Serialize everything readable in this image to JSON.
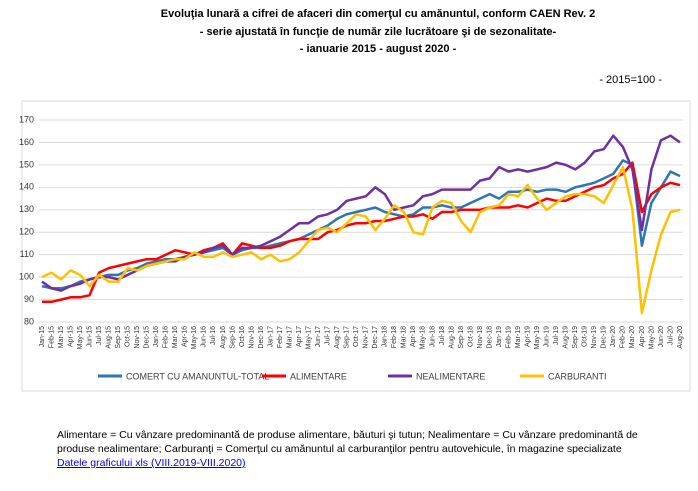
{
  "chart_data": {
    "type": "line",
    "title_lines": [
      "Evoluţia lunară a cifrei de afaceri din comerţul cu amănuntul,  conform CAEN Rev. 2",
      "- serie ajustată în funcţie de număr zile lucrătoare şi de sezonalitate-",
      "- ianuarie 2015 -  august 2020  -"
    ],
    "unit_note": "- 2015=100 -",
    "categories": [
      "Jan-15",
      "Feb-15",
      "Mar-15",
      "Apr-15",
      "May-15",
      "Jun-15",
      "Jul-15",
      "Aug-15",
      "Sep-15",
      "Oct-15",
      "Nov-15",
      "Dec-15",
      "Jan-16",
      "Feb-16",
      "Mar-16",
      "Apr-16",
      "May-16",
      "Jun-16",
      "Jul-16",
      "Aug-16",
      "Sep-16",
      "Oct-16",
      "Nov-16",
      "Dec-16",
      "Jan-17",
      "Feb-17",
      "Mar-17",
      "Apr-17",
      "May-17",
      "Jun-17",
      "Jul-17",
      "Aug-17",
      "Sep-17",
      "Oct-17",
      "Nov-17",
      "Dec-17",
      "Jan-18",
      "Feb-18",
      "Mar-18",
      "Apr-18",
      "May-18",
      "Jun-18",
      "Jul-18",
      "Aug-18",
      "Sep-18",
      "Oct-18",
      "Nov-18",
      "Dec-18",
      "Jan-19",
      "Feb-19",
      "Mar-19",
      "Apr-19",
      "May-19",
      "Jun-19",
      "Jul-19",
      "Aug-19",
      "Sep-19",
      "Oct-19",
      "Nov-19",
      "Dec-19",
      "Jan-20",
      "Feb-20",
      "Mar-20",
      "Apr-20",
      "May-20",
      "Jun-20",
      "Jul-20",
      "Aug-20"
    ],
    "series": [
      {
        "name": "COMERT CU AMANUNTUL-TOTAL",
        "color": "#2e75b6",
        "values": [
          96,
          95,
          95,
          96,
          98,
          99,
          100,
          101,
          101,
          103,
          104,
          106,
          107,
          108,
          108,
          109,
          110,
          111,
          112,
          113,
          110,
          112,
          113,
          113,
          114,
          115,
          116,
          117,
          119,
          121,
          123,
          126,
          128,
          129,
          130,
          131,
          129,
          128,
          127,
          128,
          131,
          131,
          132,
          131,
          131,
          133,
          135,
          137,
          135,
          138,
          138,
          139,
          138,
          139,
          139,
          138,
          140,
          141,
          142,
          144,
          146,
          152,
          150,
          114,
          133,
          140,
          147,
          145
        ]
      },
      {
        "name": "ALIMENTARE",
        "color": "#ff0000",
        "values": [
          89,
          89,
          90,
          91,
          91,
          92,
          102,
          104,
          105,
          106,
          107,
          108,
          108,
          110,
          112,
          111,
          110,
          112,
          113,
          115,
          110,
          115,
          114,
          113,
          113,
          114,
          116,
          117,
          117,
          117,
          120,
          121,
          123,
          124,
          124,
          125,
          125,
          126,
          127,
          127,
          128,
          126,
          129,
          129,
          130,
          130,
          130,
          131,
          131,
          131,
          132,
          131,
          133,
          135,
          134,
          134,
          136,
          138,
          140,
          141,
          144,
          146,
          151,
          129,
          137,
          140,
          142,
          141
        ]
      },
      {
        "name": "NEALIMENTARE",
        "color": "#7030a0",
        "values": [
          98,
          95,
          94,
          96,
          97,
          99,
          100,
          100,
          99,
          101,
          103,
          105,
          106,
          107,
          107,
          109,
          110,
          111,
          113,
          114,
          110,
          113,
          113,
          114,
          116,
          118,
          121,
          124,
          124,
          127,
          128,
          130,
          134,
          135,
          136,
          140,
          137,
          130,
          131,
          132,
          136,
          137,
          139,
          139,
          139,
          139,
          143,
          144,
          149,
          147,
          148,
          147,
          148,
          149,
          151,
          150,
          148,
          151,
          156,
          157,
          163,
          158,
          148,
          121,
          148,
          161,
          163,
          160
        ]
      },
      {
        "name": "CARBURANTI",
        "color": "#ffc000",
        "values": [
          100,
          102,
          99,
          103,
          101,
          96,
          101,
          98,
          98,
          104,
          103,
          105,
          106,
          107,
          108,
          108,
          111,
          109,
          109,
          111,
          109,
          110,
          111,
          108,
          110,
          107,
          108,
          111,
          116,
          121,
          122,
          120,
          124,
          128,
          127,
          121,
          126,
          132,
          129,
          120,
          119,
          131,
          134,
          133,
          125,
          120,
          129,
          131,
          132,
          137,
          136,
          141,
          135,
          130,
          133,
          136,
          137,
          137,
          136,
          133,
          141,
          149,
          130,
          84,
          103,
          119,
          129,
          130
        ]
      }
    ],
    "ylim": [
      80,
      170
    ],
    "yticks": [
      80,
      90,
      100,
      110,
      120,
      130,
      140,
      150,
      160,
      170
    ],
    "grid": true,
    "footnote": "Alimentare = Cu vânzare predominantă de produse alimentare, băuturi şi tutun; Nealimentare = Cu vânzare predominantă de produse  nealimentare; Carburanţi = Comerţul cu amănuntul al carburanţilor pentru  autovehicule, în magazine specializate",
    "link": "Datele graficului xls (VIII.2019-VIII.2020)"
  }
}
